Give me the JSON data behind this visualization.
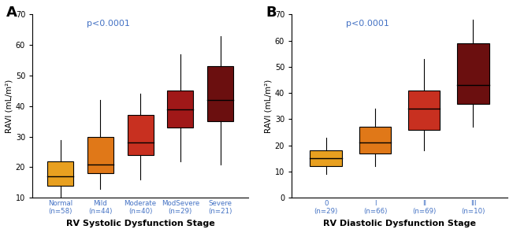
{
  "panel_A": {
    "title_label": "A",
    "pvalue": "p<0.0001",
    "xlabel": "RV Systolic Dysfunction Stage",
    "ylabel": "RAVI (mL/m²)",
    "ylim": [
      10,
      70
    ],
    "yticks": [
      10,
      20,
      30,
      40,
      50,
      60,
      70
    ],
    "categories": [
      "Normal\n(n=58)",
      "Mild\n(n=44)",
      "Moderate\n(n=40)",
      "ModSevere\n(n=29)",
      "Severe\n(n=21)"
    ],
    "box_colors": [
      "#E8A020",
      "#E07818",
      "#C83020",
      "#A01818",
      "#6B0F0F"
    ],
    "boxes": [
      {
        "q1": 14,
        "median": 17,
        "q3": 22,
        "whislo": 10,
        "whishi": 29
      },
      {
        "q1": 18,
        "median": 21,
        "q3": 30,
        "whislo": 13,
        "whishi": 42
      },
      {
        "q1": 24,
        "median": 28,
        "q3": 37,
        "whislo": 16,
        "whishi": 44
      },
      {
        "q1": 33,
        "median": 39,
        "q3": 45,
        "whislo": 22,
        "whishi": 57
      },
      {
        "q1": 35,
        "median": 42,
        "q3": 53,
        "whislo": 21,
        "whishi": 63
      }
    ]
  },
  "panel_B": {
    "title_label": "B",
    "pvalue": "p<0.0001",
    "xlabel": "RV Diastolic Dysfunction Stage",
    "ylabel": "RAVI (mL/m²)",
    "ylim": [
      0,
      70
    ],
    "yticks": [
      0,
      10,
      20,
      30,
      40,
      50,
      60,
      70
    ],
    "categories": [
      "0\n(n=29)",
      "I\n(n=66)",
      "II\n(n=69)",
      "III\n(n=10)"
    ],
    "box_colors": [
      "#E8A020",
      "#E07818",
      "#C83020",
      "#6B0F0F"
    ],
    "boxes": [
      {
        "q1": 12,
        "median": 15,
        "q3": 18,
        "whislo": 9,
        "whishi": 23
      },
      {
        "q1": 17,
        "median": 21,
        "q3": 27,
        "whislo": 12,
        "whishi": 34
      },
      {
        "q1": 26,
        "median": 34,
        "q3": 41,
        "whislo": 18,
        "whishi": 53
      },
      {
        "q1": 36,
        "median": 43,
        "q3": 59,
        "whislo": 27,
        "whishi": 68
      }
    ]
  },
  "pvalue_color": "#4472C4",
  "tick_label_color": "#4472C4",
  "background_color": "#FFFFFF"
}
